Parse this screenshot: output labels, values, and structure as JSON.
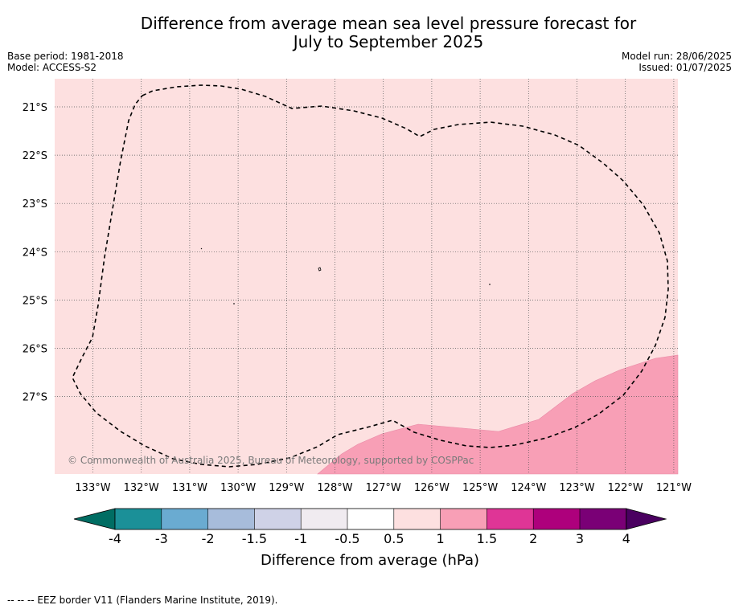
{
  "title_line1": "Difference from average mean sea level pressure forecast for",
  "title_line2": "July to September 2025",
  "base_period": "Base period: 1981-2018",
  "model": "Model: ACCESS-S2",
  "model_run": "Model run: 28/06/2025",
  "issued": "Issued: 01/07/2025",
  "copyright": "© Commonwealth of Australia 2025, Bureau of Meteorology, supported by COSPPac",
  "lat_labels": [
    "21°S",
    "22°S",
    "23°S",
    "24°S",
    "25°S",
    "26°S",
    "27°S"
  ],
  "lon_labels": [
    "133°W",
    "132°W",
    "131°W",
    "130°W",
    "129°W",
    "128°W",
    "127°W",
    "126°W",
    "125°W",
    "124°W",
    "123°W",
    "122°W",
    "121°W"
  ],
  "colorbar": {
    "colors": [
      "#006d63",
      "#1b9098",
      "#6aabd1",
      "#a7bcdb",
      "#cfd2e7",
      "#f0ebf0",
      "#ffffff",
      "#fde0e0",
      "#f89fb6",
      "#df3596",
      "#ae007c",
      "#7a0076",
      "#4a0060"
    ],
    "ticks": [
      "-4",
      "-3",
      "-2",
      "-1.5",
      "-1",
      "-0.5",
      "0.5",
      "1",
      "1.5",
      "2",
      "3",
      "4"
    ],
    "label": "Difference from average (hPa)"
  },
  "legend_colors": {
    "background": "#fde0e0",
    "anomaly_region": "#f89fb6"
  },
  "eez_legend": "--  --  -- EEZ border V11 (Flanders Marine Institute, 2019)."
}
